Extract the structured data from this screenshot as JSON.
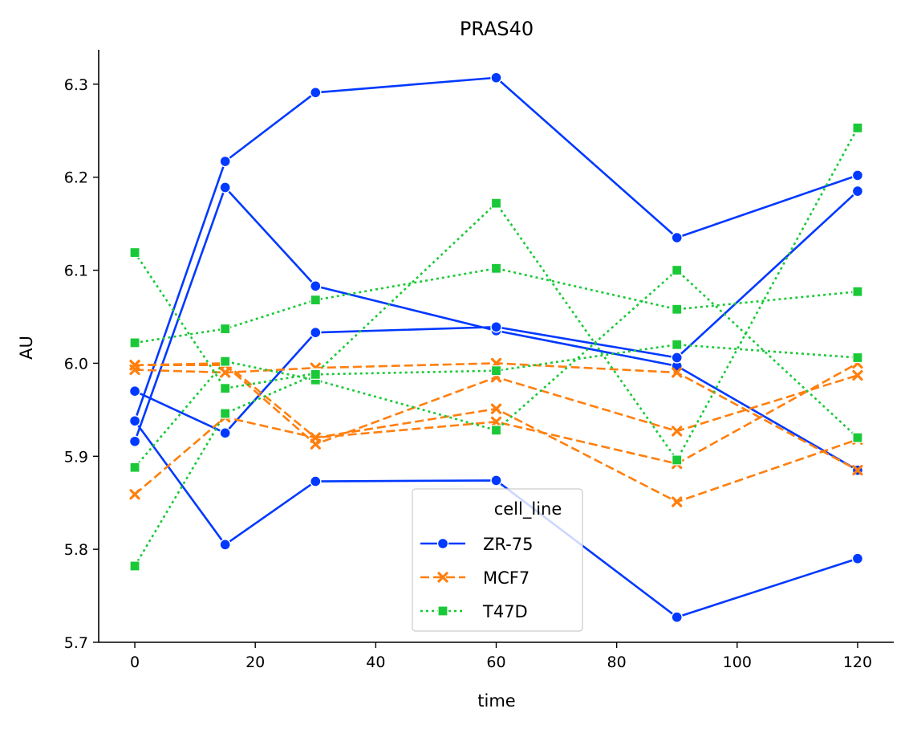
{
  "chart_data": {
    "type": "line",
    "title": "PRAS40",
    "xlabel": "time",
    "ylabel": "AU",
    "xlim": [
      -6,
      126
    ],
    "ylim": [
      5.7,
      6.337
    ],
    "xticks": [
      0,
      20,
      40,
      60,
      80,
      100,
      120
    ],
    "yticks": [
      5.7,
      5.8,
      5.9,
      6.0,
      6.1,
      6.2,
      6.3
    ],
    "ytick_labels": [
      "5.7",
      "5.8",
      "5.9",
      "6.0",
      "6.1",
      "6.2",
      "6.3"
    ],
    "grid": false,
    "legend": {
      "title": "cell_line",
      "placement": "lower-center"
    },
    "x": [
      0,
      15,
      30,
      60,
      90,
      120
    ],
    "groups": [
      {
        "name": "ZR-75",
        "color": "#0039ff",
        "marker": "circle",
        "dash": "solid",
        "lines": [
          [
            5.938,
            6.217,
            6.291,
            6.307,
            6.135,
            6.202
          ],
          [
            5.916,
            6.189,
            6.083,
            6.035,
            5.997,
            5.885
          ],
          [
            5.97,
            5.925,
            6.033,
            6.039,
            6.006,
            6.185
          ],
          [
            5.938,
            5.805,
            5.873,
            5.874,
            5.727,
            5.79
          ]
        ]
      },
      {
        "name": "MCF7",
        "color": "#ff7f0e",
        "marker": "x",
        "dash": "dashed",
        "lines": [
          [
            5.998,
            6.0,
            5.92,
            5.951,
            5.851,
            5.918
          ],
          [
            5.993,
            5.99,
            5.995,
            6.0,
            5.99,
            5.885
          ],
          [
            5.998,
            5.998,
            5.913,
            5.985,
            5.927,
            5.987
          ],
          [
            5.859,
            5.942,
            5.92,
            5.937,
            5.892,
            6.0
          ]
        ]
      },
      {
        "name": "T47D",
        "color": "#1ac938",
        "marker": "square",
        "dash": "dotted",
        "lines": [
          [
            6.119,
            5.973,
            5.989,
            6.172,
            5.896,
            6.253
          ],
          [
            6.022,
            6.037,
            6.068,
            6.102,
            6.058,
            6.077
          ],
          [
            5.888,
            6.002,
            5.982,
            5.928,
            6.1,
            5.92
          ],
          [
            5.782,
            5.946,
            5.988,
            5.992,
            6.02,
            6.006
          ]
        ]
      }
    ]
  }
}
